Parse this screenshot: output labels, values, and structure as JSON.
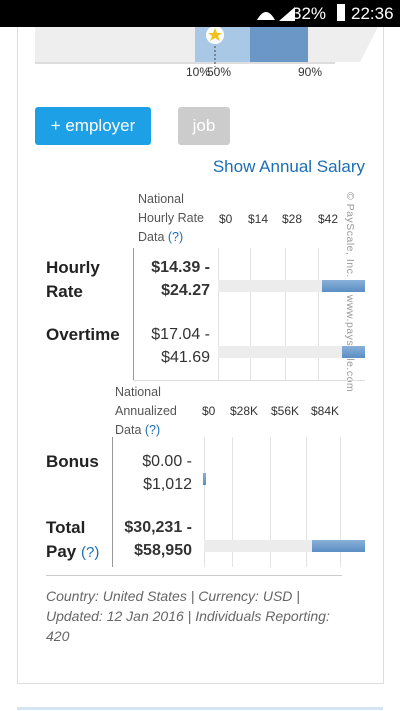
{
  "status_bar": {
    "battery": "32%",
    "time": "22:36"
  },
  "percentile_labels": [
    "10%",
    "50%",
    "90%"
  ],
  "buttons": {
    "employer": "+ employer",
    "job": "job"
  },
  "link": "Show Annual Salary",
  "watermark": [
    "© PayScale, Inc.",
    "www.payscale.com"
  ],
  "hourly": {
    "header": "National Hourly Rate Data",
    "help": "(?)",
    "ticks": [
      "$0",
      "$14",
      "$28",
      "$42"
    ],
    "rows": [
      {
        "label": "Hourly Rate",
        "range": "$14.39 - $24.27"
      },
      {
        "label": "Overtime",
        "range": "$17.04 - $41.69"
      }
    ]
  },
  "annual": {
    "header": "National Annualized Data",
    "help": "(?)",
    "ticks": [
      "$0",
      "$28K",
      "$56K",
      "$84K"
    ],
    "rows": [
      {
        "label": "Bonus",
        "range": "$0.00 - $1,012"
      },
      {
        "label": "Total Pay",
        "help": "(?)",
        "range": "$30,231 - $58,950"
      }
    ]
  },
  "footer": "Country: United States | Currency: USD | Updated: 12 Jan 2016 | Individuals Reporting: 420"
}
